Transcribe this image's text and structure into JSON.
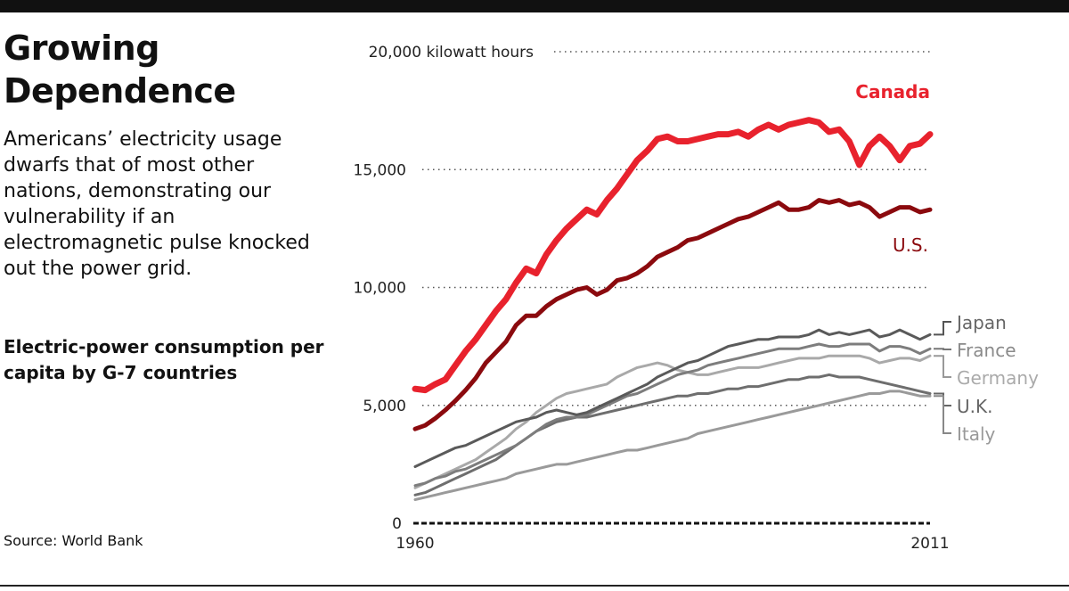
{
  "headline": "Growing Dependence",
  "dek": "Americans’ electricity usage dwarfs that of most other nations, demonstrating our vulnerability if an electromagnetic pulse knocked out the power grid.",
  "chart_heading": "Electric-power consumption per capita by G-7 countries",
  "source": "Source: World Bank",
  "colors": {
    "canada": "#e8222d",
    "us": "#8b0a0e",
    "japan": "#5a5a5a",
    "france": "#7d7d7d",
    "germany": "#a9a9a9",
    "uk": "#6e6e6e",
    "italy": "#9a9a9a",
    "grid": "#555555",
    "baseline": "#111111"
  },
  "chart_data": {
    "type": "line",
    "title": "",
    "xlabel": "",
    "ylabel": "",
    "xlim": [
      1960,
      2011
    ],
    "ylim": [
      0,
      20000
    ],
    "y_ticks": [
      {
        "value": 20000,
        "label": "20,000 kilowatt hours"
      },
      {
        "value": 15000,
        "label": "15,000"
      },
      {
        "value": 10000,
        "label": "10,000"
      },
      {
        "value": 5000,
        "label": "5,000"
      },
      {
        "value": 0,
        "label": "0"
      }
    ],
    "x_tick_labels": [
      {
        "value": 1960,
        "label": "1960"
      },
      {
        "value": 2011,
        "label": "2011"
      }
    ],
    "grid": "dotted horizontal",
    "legend": "direct labels at right",
    "series": [
      {
        "key": "canada",
        "name": "Canada",
        "x_start": 1960,
        "values": [
          5700,
          5650,
          5900,
          6100,
          6700,
          7300,
          7800,
          8400,
          9000,
          9500,
          10200,
          10800,
          10600,
          11400,
          12000,
          12500,
          12900,
          13300,
          13100,
          13700,
          14200,
          14800,
          15400,
          15800,
          16300,
          16400,
          16200,
          16200,
          16300,
          16400,
          16500,
          16500,
          16600,
          16400,
          16700,
          16900,
          16700,
          16900,
          17000,
          17100,
          17000,
          16600,
          16700,
          16200,
          15200,
          16000,
          16400,
          16000,
          15400,
          16000,
          16100,
          16500
        ]
      },
      {
        "key": "us",
        "name": "U.S.",
        "x_start": 1960,
        "values": [
          4000,
          4150,
          4450,
          4800,
          5200,
          5650,
          6150,
          6800,
          7250,
          7700,
          8400,
          8800,
          8800,
          9200,
          9500,
          9700,
          9900,
          10000,
          9700,
          9900,
          10300,
          10400,
          10600,
          10900,
          11300,
          11500,
          11700,
          12000,
          12100,
          12300,
          12500,
          12700,
          12900,
          13000,
          13200,
          13400,
          13600,
          13300,
          13300,
          13400,
          13700,
          13600,
          13700,
          13500,
          13600,
          13400,
          13000,
          13200,
          13400,
          13400,
          13200,
          13300
        ]
      },
      {
        "key": "japan",
        "name": "Japan",
        "x_start": 1960,
        "values": [
          2400,
          2600,
          2800,
          3000,
          3200,
          3300,
          3500,
          3700,
          3900,
          4100,
          4300,
          4400,
          4500,
          4700,
          4800,
          4700,
          4600,
          4700,
          4900,
          5100,
          5300,
          5500,
          5700,
          5900,
          6200,
          6400,
          6600,
          6800,
          6900,
          7100,
          7300,
          7500,
          7600,
          7700,
          7800,
          7800,
          7900,
          7900,
          7900,
          8000,
          8200,
          8000,
          8100,
          8000,
          8100,
          8200,
          7900,
          8000,
          8200,
          8000,
          7800,
          8000
        ]
      },
      {
        "key": "france",
        "name": "France",
        "x_start": 1960,
        "values": [
          1600,
          1700,
          1900,
          2000,
          2200,
          2300,
          2500,
          2700,
          2900,
          3100,
          3300,
          3600,
          3900,
          4200,
          4400,
          4500,
          4500,
          4600,
          4800,
          5000,
          5200,
          5400,
          5500,
          5700,
          5900,
          6100,
          6300,
          6400,
          6500,
          6700,
          6800,
          6900,
          7000,
          7100,
          7200,
          7300,
          7400,
          7400,
          7400,
          7500,
          7600,
          7500,
          7500,
          7600,
          7600,
          7600,
          7300,
          7500,
          7500,
          7400,
          7200,
          7400
        ]
      },
      {
        "key": "germany",
        "name": "Germany",
        "x_start": 1960,
        "values": [
          1500,
          1700,
          1900,
          2100,
          2300,
          2500,
          2700,
          3000,
          3300,
          3600,
          4000,
          4300,
          4700,
          5000,
          5300,
          5500,
          5600,
          5700,
          5800,
          5900,
          6200,
          6400,
          6600,
          6700,
          6800,
          6700,
          6500,
          6400,
          6300,
          6300,
          6400,
          6500,
          6600,
          6600,
          6600,
          6700,
          6800,
          6900,
          7000,
          7000,
          7000,
          7100,
          7100,
          7100,
          7100,
          7000,
          6800,
          6900,
          7000,
          7000,
          6900,
          7100
        ]
      },
      {
        "key": "uk",
        "name": "U.K.",
        "x_start": 1960,
        "values": [
          1200,
          1300,
          1500,
          1700,
          1900,
          2100,
          2300,
          2500,
          2700,
          3000,
          3300,
          3600,
          3900,
          4100,
          4300,
          4400,
          4500,
          4500,
          4600,
          4700,
          4800,
          4900,
          5000,
          5100,
          5200,
          5300,
          5400,
          5400,
          5500,
          5500,
          5600,
          5700,
          5700,
          5800,
          5800,
          5900,
          6000,
          6100,
          6100,
          6200,
          6200,
          6300,
          6200,
          6200,
          6200,
          6100,
          6000,
          5900,
          5800,
          5700,
          5600,
          5500
        ]
      },
      {
        "key": "italy",
        "name": "Italy",
        "x_start": 1960,
        "values": [
          1000,
          1100,
          1200,
          1300,
          1400,
          1500,
          1600,
          1700,
          1800,
          1900,
          2100,
          2200,
          2300,
          2400,
          2500,
          2500,
          2600,
          2700,
          2800,
          2900,
          3000,
          3100,
          3100,
          3200,
          3300,
          3400,
          3500,
          3600,
          3800,
          3900,
          4000,
          4100,
          4200,
          4300,
          4400,
          4500,
          4600,
          4700,
          4800,
          4900,
          5000,
          5100,
          5200,
          5300,
          5400,
          5500,
          5500,
          5600,
          5600,
          5500,
          5400,
          5400
        ]
      }
    ]
  }
}
